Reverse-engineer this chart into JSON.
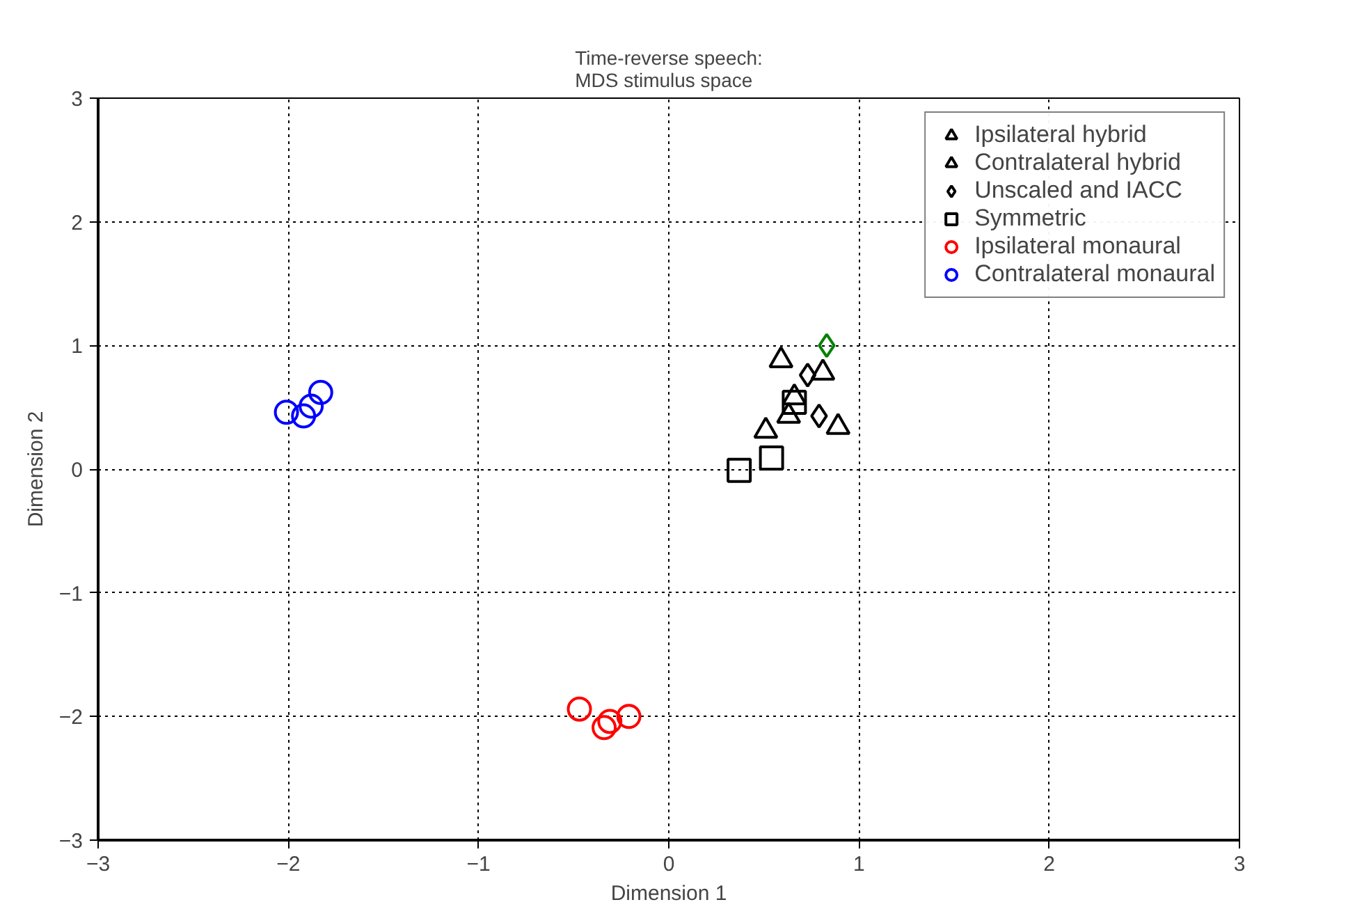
{
  "chart_data": {
    "type": "scatter",
    "title": "Time-reverse speech:\nMDS stimulus space",
    "xlabel": "Dimension 1",
    "ylabel": "Dimension 2",
    "xlim": [
      -3,
      3
    ],
    "ylim": [
      -3,
      3
    ],
    "xticks": [
      -3,
      -2,
      -1,
      0,
      1,
      2,
      3
    ],
    "yticks": [
      -3,
      -2,
      -1,
      0,
      1,
      2,
      3
    ],
    "grid": true,
    "legend": "top right",
    "line_style": "dotted",
    "series": [
      {
        "name": "Ipsilateral hybrid",
        "color": "#000000",
        "marker": "triangle",
        "x": [
          0.59,
          0.81,
          0.66
        ],
        "values": [
          0.88,
          0.78,
          0.58
        ]
      },
      {
        "name": "Contralateral hybrid",
        "color": "#000000",
        "marker": "triangle",
        "x": [
          0.51,
          0.89,
          0.63
        ],
        "values": [
          0.31,
          0.34,
          0.43
        ]
      },
      {
        "name": "Unscaled and IACC",
        "color": "#000000",
        "marker": "diamond",
        "x": [
          0.79,
          0.73
        ],
        "values": [
          0.43,
          0.76
        ]
      },
      {
        "color": "#008000",
        "marker": "diamond",
        "x": [
          0.83
        ],
        "values": [
          1.0
        ]
      },
      {
        "name": "Symmetric",
        "color": "#000000",
        "marker": "square",
        "x": [
          0.37,
          0.54,
          0.66
        ],
        "values": [
          -0.01,
          0.09,
          0.54
        ]
      },
      {
        "name": "Ipsilateral monaural",
        "color": "#ff0000",
        "marker": "circle",
        "x": [
          -0.47,
          -0.34,
          -0.31,
          -0.21
        ],
        "values": [
          -1.94,
          -2.09,
          -2.04,
          -2.0
        ]
      },
      {
        "name": "Contralateral monaural",
        "color": "#0000ff",
        "marker": "circle",
        "x": [
          -2.01,
          -1.92,
          -1.88,
          -1.83
        ],
        "values": [
          0.46,
          0.43,
          0.51,
          0.62
        ]
      }
    ]
  }
}
